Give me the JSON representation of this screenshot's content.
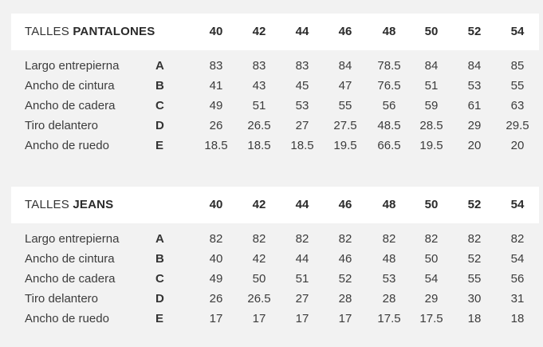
{
  "tables": [
    {
      "title_prefix": "TALLES",
      "title_bold": "PANTALONES",
      "sizes": [
        "40",
        "42",
        "44",
        "46",
        "48",
        "50",
        "52",
        "54"
      ],
      "rows": [
        {
          "label": "Largo entrepierna",
          "code": "A",
          "values": [
            "83",
            "83",
            "83",
            "84",
            "78.5",
            "84",
            "84",
            "85"
          ]
        },
        {
          "label": "Ancho de cintura",
          "code": "B",
          "values": [
            "41",
            "43",
            "45",
            "47",
            "76.5",
            "51",
            "53",
            "55"
          ]
        },
        {
          "label": "Ancho de cadera",
          "code": "C",
          "values": [
            "49",
            "51",
            "53",
            "55",
            "56",
            "59",
            "61",
            "63"
          ]
        },
        {
          "label": "Tiro delantero",
          "code": "D",
          "values": [
            "26",
            "26.5",
            "27",
            "27.5",
            "48.5",
            "28.5",
            "29",
            "29.5"
          ]
        },
        {
          "label": "Ancho de ruedo",
          "code": "E",
          "values": [
            "18.5",
            "18.5",
            "18.5",
            "19.5",
            "66.5",
            "19.5",
            "20",
            "20"
          ]
        }
      ]
    },
    {
      "title_prefix": "TALLES",
      "title_bold": "JEANS",
      "sizes": [
        "40",
        "42",
        "44",
        "46",
        "48",
        "50",
        "52",
        "54"
      ],
      "rows": [
        {
          "label": "Largo entrepierna",
          "code": "A",
          "values": [
            "82",
            "82",
            "82",
            "82",
            "82",
            "82",
            "82",
            "82"
          ]
        },
        {
          "label": "Ancho de cintura",
          "code": "B",
          "values": [
            "40",
            "42",
            "44",
            "46",
            "48",
            "50",
            "52",
            "54"
          ]
        },
        {
          "label": "Ancho de cadera",
          "code": "C",
          "values": [
            "49",
            "50",
            "51",
            "52",
            "53",
            "54",
            "55",
            "56"
          ]
        },
        {
          "label": "Tiro delantero",
          "code": "D",
          "values": [
            "26",
            "26.5",
            "27",
            "28",
            "28",
            "29",
            "30",
            "31"
          ]
        },
        {
          "label": "Ancho de ruedo",
          "code": "E",
          "values": [
            "17",
            "17",
            "17",
            "17",
            "17.5",
            "17.5",
            "18",
            "18"
          ]
        }
      ]
    }
  ]
}
